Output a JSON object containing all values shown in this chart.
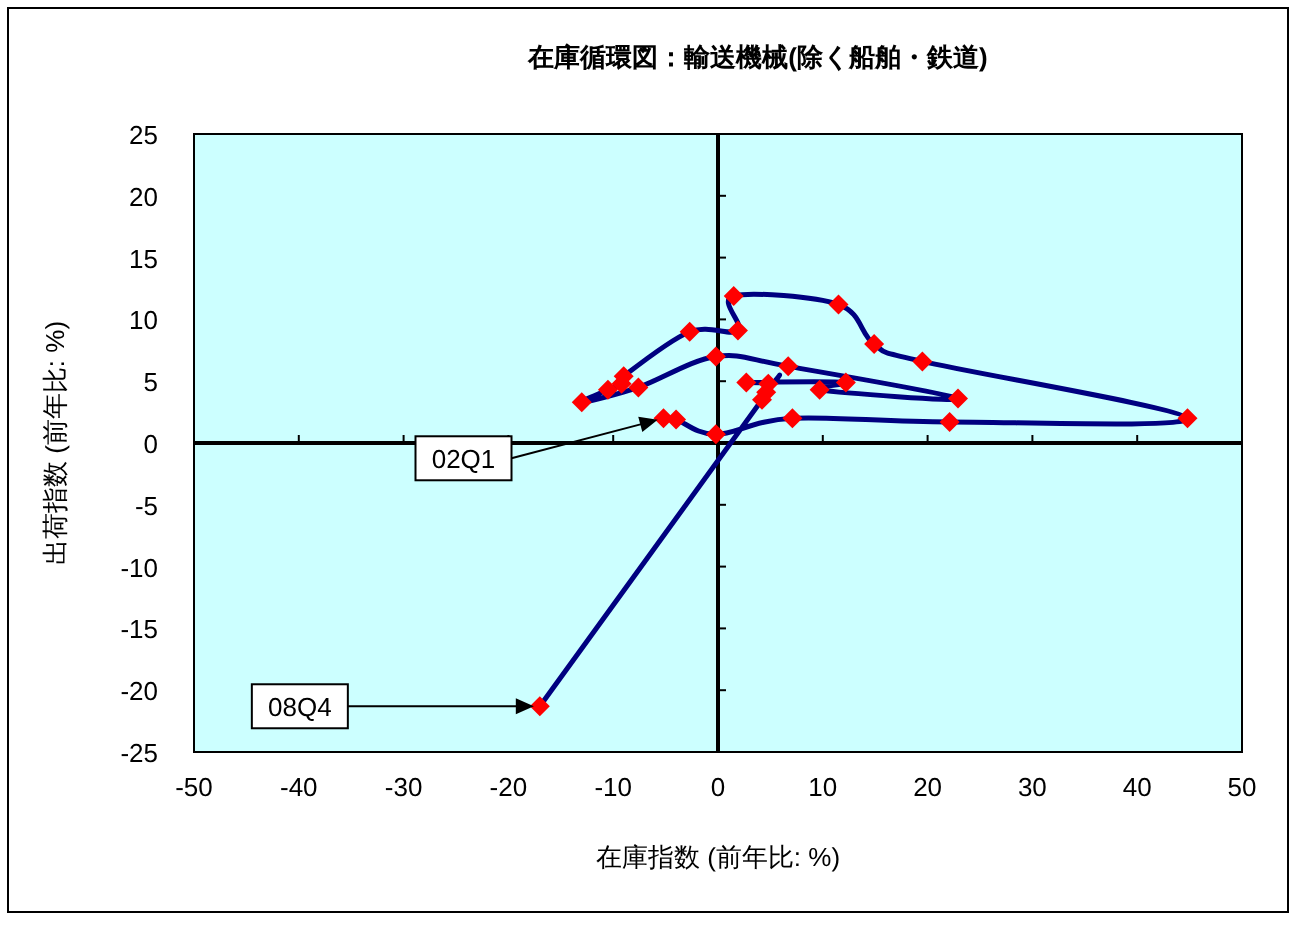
{
  "chart_data": {
    "type": "line",
    "title": "在庫循環図：輸送機械(除く船舶・鉄道)",
    "xlabel": "在庫指数 (前年比: %)",
    "ylabel": "出荷指数 (前年比: %)",
    "xlim": [
      -50,
      50
    ],
    "xticks": [
      -50,
      -40,
      -30,
      -20,
      -10,
      0,
      10,
      20,
      30,
      40,
      50
    ],
    "ylim": [
      -25,
      25
    ],
    "yticks": [
      -25,
      -20,
      -15,
      -10,
      -5,
      0,
      5,
      10,
      15,
      20,
      25
    ],
    "marker": "diamond",
    "line_style": "solid",
    "series": [
      {
        "color": "#000080",
        "colors": [
          "#ff0000",
          "#ff0000",
          "#ff0000",
          "#ff0000",
          "#ff0000",
          "#ff0000",
          "#ff0000",
          "#ff0000",
          "#ff0000",
          "#ff0000",
          "#ff0000",
          "#ff0000",
          "#ff0000",
          "#ff0000",
          "#ff0000",
          "#ff0000",
          "#ff0000",
          "#ff0000",
          "#ff0000",
          "#ff0000",
          "#ff0000",
          "#ff0000",
          "#ff0000",
          "#ff0000",
          "#ff0000",
          "#ff0000",
          "#ff0000"
        ],
        "x": [
          -5.2,
          -4.0,
          -0.2,
          7.1,
          22.1,
          44.8,
          19.5,
          14.9,
          11.5,
          1.5,
          1.9,
          -2.7,
          -9.0,
          -9.2,
          -10.5,
          -13.0,
          -7.6,
          -0.2,
          6.7,
          22.9,
          9.7,
          12.2,
          2.7,
          4.8,
          4.6,
          4.2,
          -17.0
        ],
        "values": [
          2.0,
          1.9,
          0.7,
          2.0,
          1.7,
          2.0,
          6.6,
          8.0,
          11.2,
          11.9,
          9.1,
          9.0,
          5.4,
          4.8,
          4.3,
          3.3,
          4.5,
          7.0,
          6.2,
          3.6,
          4.3,
          4.9,
          4.9,
          4.8,
          4.1,
          3.5,
          -21.3
        ]
      }
    ],
    "annotations": [
      {
        "text": "02Q1",
        "x": -5.2,
        "y": 2.0
      },
      {
        "text": "08Q4",
        "x": -17.0,
        "y": -21.3
      }
    ]
  }
}
